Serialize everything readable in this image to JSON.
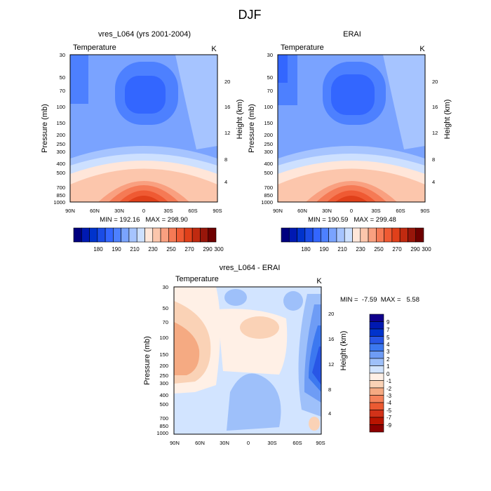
{
  "figure_title": "DJF",
  "colors": {
    "model_obs_scale": [
      "#00007f",
      "#0019b2",
      "#0033cc",
      "#1a4ce6",
      "#3366ff",
      "#4d80ff",
      "#7aa3ff",
      "#a6c4ff",
      "#cde0ff",
      "#ffe6d9",
      "#fcc6ac",
      "#f9a080",
      "#f57a55",
      "#ef5a33",
      "#e0401a",
      "#c02a10",
      "#98160a",
      "#6e0000"
    ],
    "diff_scale": [
      "#0f008c",
      "#0019b2",
      "#0033cc",
      "#2856e6",
      "#3c78f0",
      "#6e9cf5",
      "#9ec0fa",
      "#d2e4ff",
      "#fff0e6",
      "#fad2b6",
      "#f5aa82",
      "#f5825a",
      "#eb5a32",
      "#d23219",
      "#b91400",
      "#8c0000"
    ]
  },
  "colorbar_top": {
    "labels": [
      "180",
      "190",
      "210",
      "230",
      "250",
      "270",
      "290",
      "300"
    ]
  },
  "colorbar_diff": {
    "labels": [
      "9",
      "7",
      "5",
      "4",
      "3",
      "2",
      "1",
      "0",
      "-1",
      "-2",
      "-3",
      "-4",
      "-5",
      "-7",
      "-9"
    ]
  },
  "chart_data": [
    {
      "type": "heatmap",
      "title": "vres_L064 (yrs 2001-2004)",
      "left_label": "Temperature",
      "units": "K",
      "ylabel": "Pressure (mb)",
      "ylabel_right": "Height (km)",
      "x_ticks": [
        "90N",
        "60N",
        "30N",
        "0",
        "30S",
        "60S",
        "90S"
      ],
      "y_ticks": [
        "30",
        "50",
        "70",
        "100",
        "150",
        "200",
        "250",
        "300",
        "400",
        "500",
        "700",
        "850",
        "1000"
      ],
      "height_ticks": [
        "20",
        "16",
        "12",
        "8",
        "4"
      ],
      "stats": "MIN = 192.16   MAX = 298.90",
      "min": 192.16,
      "max": 298.9
    },
    {
      "type": "heatmap",
      "title": "ERAI",
      "left_label": "Temperature",
      "units": "K",
      "ylabel": "Pressure (mb)",
      "ylabel_right": "Height (km)",
      "x_ticks": [
        "90N",
        "60N",
        "30N",
        "0",
        "30S",
        "60S",
        "90S"
      ],
      "y_ticks": [
        "30",
        "50",
        "70",
        "100",
        "150",
        "200",
        "250",
        "300",
        "400",
        "500",
        "700",
        "850",
        "1000"
      ],
      "height_ticks": [
        "20",
        "16",
        "12",
        "8",
        "4"
      ],
      "stats": "MIN = 190.59   MAX = 299.48",
      "min": 190.59,
      "max": 299.48
    },
    {
      "type": "heatmap",
      "title": "vres_L064 - ERAI",
      "left_label": "Temperature",
      "units": "K",
      "ylabel": "Pressure (mb)",
      "ylabel_right": "Height (km)",
      "x_ticks": [
        "90N",
        "60N",
        "30N",
        "0",
        "30S",
        "60S",
        "90S"
      ],
      "y_ticks": [
        "30",
        "50",
        "70",
        "100",
        "150",
        "200",
        "250",
        "300",
        "400",
        "500",
        "700",
        "850",
        "1000"
      ],
      "height_ticks": [
        "20",
        "16",
        "12",
        "8",
        "4"
      ],
      "stats": "MIN =  -7.59  MAX =   5.58",
      "min": -7.59,
      "max": 5.58
    }
  ]
}
